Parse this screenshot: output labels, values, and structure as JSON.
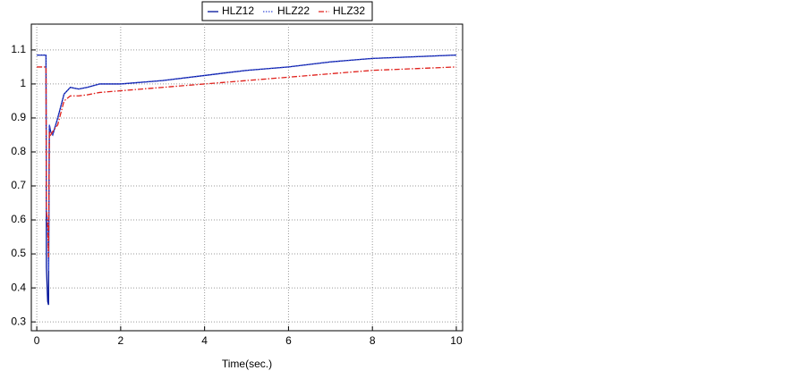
{
  "chart_data": {
    "type": "line",
    "x_label": "Time(sec.)",
    "xlim": [
      -0.13,
      10.15
    ],
    "ylim": [
      0.274,
      1.176
    ],
    "xticks": [
      0,
      2,
      4,
      6,
      8,
      10
    ],
    "yticks": [
      0.3,
      0.4,
      0.5,
      0.6,
      0.7,
      0.8,
      0.9,
      1,
      1.1
    ],
    "grid": true,
    "legend": "top",
    "x": [
      0,
      0.22,
      0.23,
      0.26,
      0.28,
      0.3,
      0.33,
      0.38,
      0.5,
      0.65,
      0.8,
      1.0,
      1.2,
      1.5,
      2,
      3,
      4,
      5,
      6,
      7,
      8,
      9,
      10
    ],
    "series": [
      {
        "name": "HLZ12",
        "color": "#00129a",
        "style": "solid",
        "values": [
          1.085,
          1.085,
          0.46,
          0.36,
          0.35,
          0.88,
          0.86,
          0.85,
          0.9,
          0.97,
          0.99,
          0.985,
          0.99,
          1.0,
          1.0,
          1.01,
          1.025,
          1.04,
          1.05,
          1.065,
          1.075,
          1.08,
          1.085
        ]
      },
      {
        "name": "HLZ22",
        "color": "#3a4fd8",
        "style": "dotted",
        "values": [
          1.085,
          1.085,
          0.62,
          0.6,
          0.45,
          0.88,
          0.86,
          0.85,
          0.9,
          0.97,
          0.99,
          0.985,
          0.99,
          1.0,
          1.0,
          1.01,
          1.025,
          1.04,
          1.05,
          1.065,
          1.075,
          1.08,
          1.085
        ]
      },
      {
        "name": "HLZ32",
        "color": "#e0201b",
        "style": "dashdot",
        "values": [
          1.05,
          1.05,
          0.63,
          0.58,
          0.49,
          0.86,
          0.85,
          0.86,
          0.88,
          0.95,
          0.965,
          0.965,
          0.968,
          0.975,
          0.98,
          0.99,
          1.0,
          1.01,
          1.02,
          1.03,
          1.04,
          1.045,
          1.05
        ]
      }
    ]
  }
}
